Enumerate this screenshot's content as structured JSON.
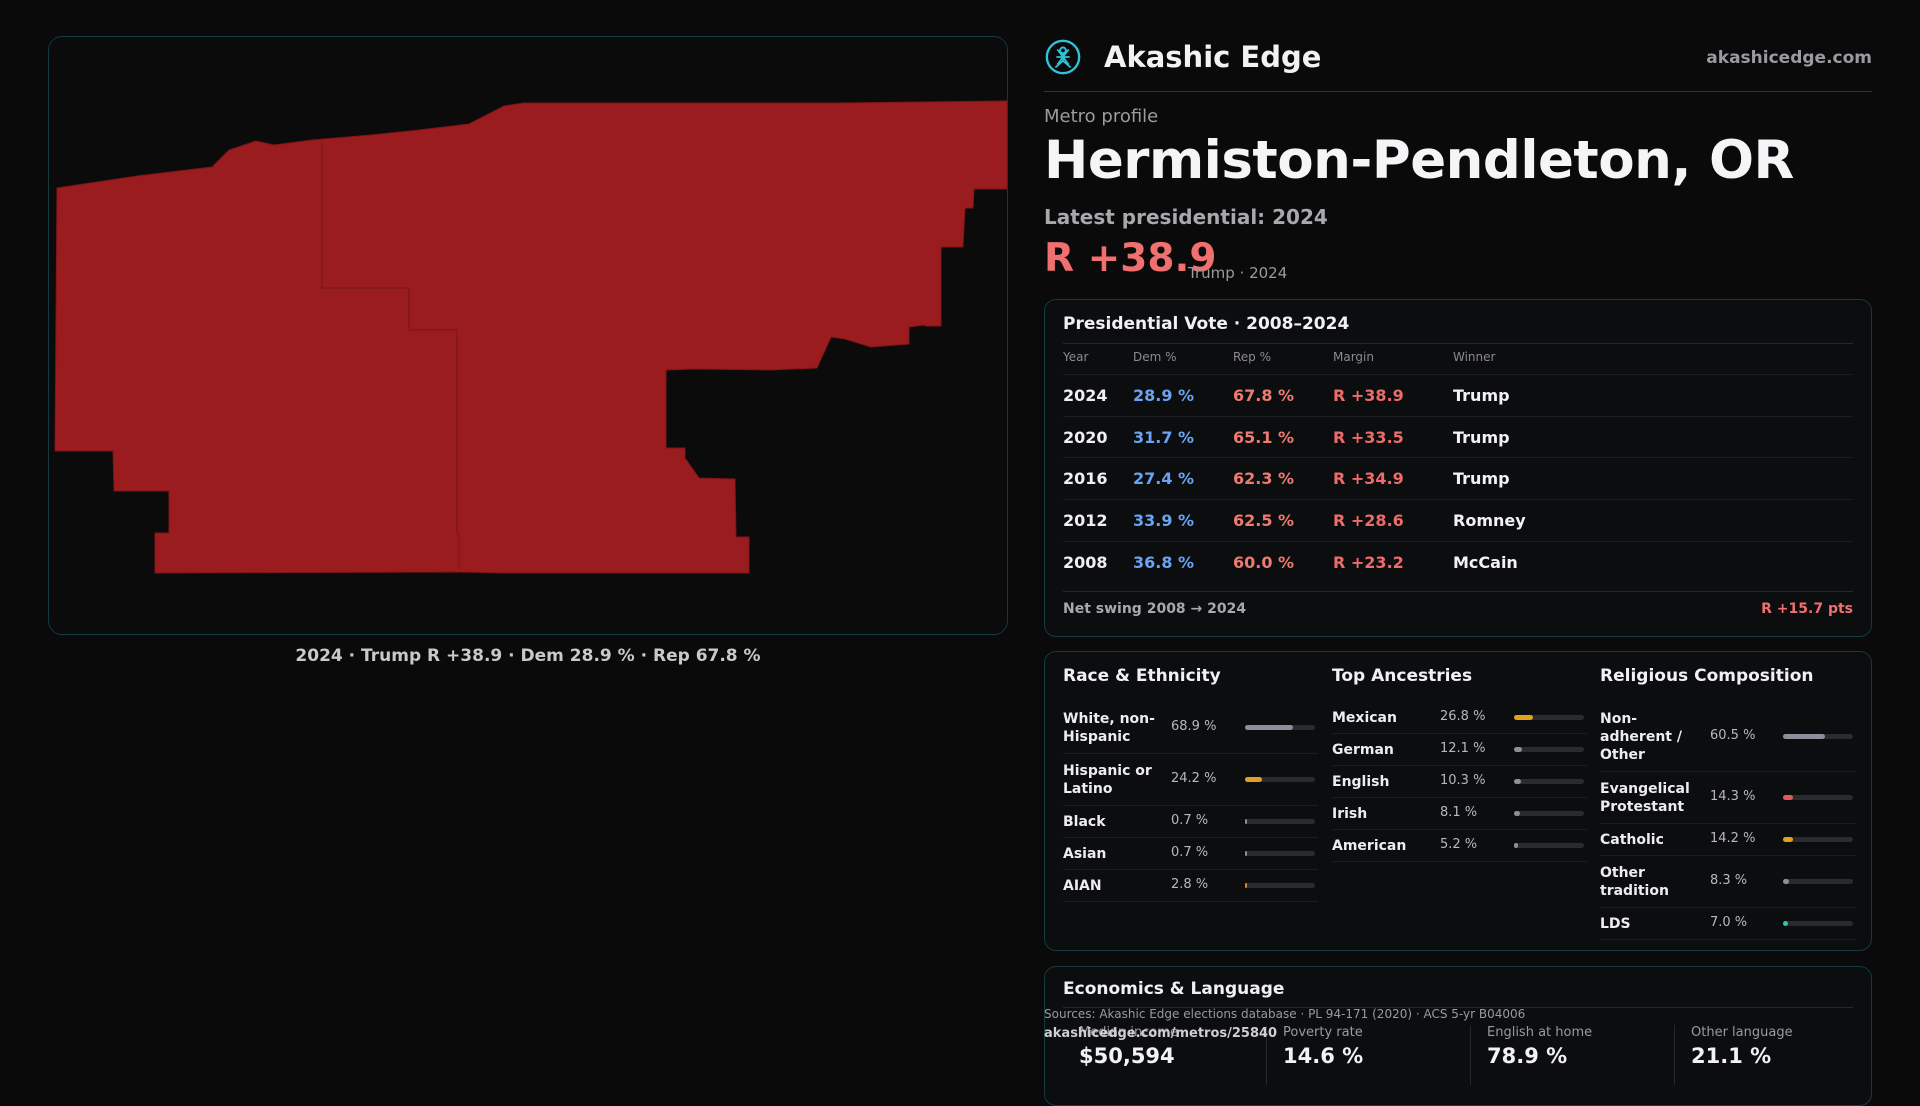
{
  "map": {
    "caption": "2024 · Trump R +38.9 · Dem 28.9 % · Rep 67.8 %",
    "fill_color": "#9b1c1f"
  },
  "brand": {
    "name": "Akashic Edge",
    "url": "akashicedge.com",
    "logo_icon": "akashic-logo-icon"
  },
  "profile": {
    "eyebrow": "Metro profile",
    "title": "Hermiston-Pendleton, OR",
    "latest_label": "Latest presidential: 2024",
    "margin": "R +38.9",
    "margin_note": "Trump · 2024"
  },
  "vote": {
    "title": "Presidential Vote · 2008–2024",
    "headers": {
      "year": "Year",
      "dem": "Dem %",
      "rep": "Rep %",
      "margin": "Margin",
      "winner": "Winner"
    },
    "rows": [
      {
        "year": "2024",
        "dem": "28.9 %",
        "rep": "67.8 %",
        "margin": "R +38.9",
        "winner": "Trump"
      },
      {
        "year": "2020",
        "dem": "31.7 %",
        "rep": "65.1 %",
        "margin": "R +33.5",
        "winner": "Trump"
      },
      {
        "year": "2016",
        "dem": "27.4 %",
        "rep": "62.3 %",
        "margin": "R +34.9",
        "winner": "Trump"
      },
      {
        "year": "2012",
        "dem": "33.9 %",
        "rep": "62.5 %",
        "margin": "R +28.6",
        "winner": "Romney"
      },
      {
        "year": "2008",
        "dem": "36.8 %",
        "rep": "60.0 %",
        "margin": "R +23.2",
        "winner": "McCain"
      }
    ],
    "swing_label": "Net swing 2008 → 2024",
    "swing_value": "R +15.7 pts"
  },
  "demographics": {
    "race": {
      "title": "Race & Ethnicity",
      "items": [
        {
          "label": "White, non-Hispanic",
          "value": "68.9 %",
          "share": 0.689,
          "color": "#8a8f99"
        },
        {
          "label": "Hispanic or Latino",
          "value": "24.2 %",
          "share": 0.242,
          "color": "#e0a020"
        },
        {
          "label": "Black",
          "value": "0.7 %",
          "share": 0.007,
          "color": "#8a8f99"
        },
        {
          "label": "Asian",
          "value": "0.7 %",
          "share": 0.007,
          "color": "#8a8f99"
        },
        {
          "label": "AIAN",
          "value": "2.8 %",
          "share": 0.028,
          "color": "#e0802a"
        }
      ]
    },
    "ancestry": {
      "title": "Top Ancestries",
      "items": [
        {
          "label": "Mexican",
          "value": "26.8 %",
          "share": 0.268,
          "color": "#e0a020"
        },
        {
          "label": "German",
          "value": "12.1 %",
          "share": 0.121,
          "color": "#8a8f99"
        },
        {
          "label": "English",
          "value": "10.3 %",
          "share": 0.103,
          "color": "#8a8f99"
        },
        {
          "label": "Irish",
          "value": "8.1 %",
          "share": 0.081,
          "color": "#8a8f99"
        },
        {
          "label": "American",
          "value": "5.2 %",
          "share": 0.052,
          "color": "#8a8f99"
        }
      ]
    },
    "religion": {
      "title": "Religious Composition",
      "items": [
        {
          "label": "Non-adherent / Other",
          "value": "60.5 %",
          "share": 0.605,
          "color": "#8a8f99"
        },
        {
          "label": "Evangelical Protestant",
          "value": "14.3 %",
          "share": 0.143,
          "color": "#e05a5a"
        },
        {
          "label": "Catholic",
          "value": "14.2 %",
          "share": 0.142,
          "color": "#e0a020"
        },
        {
          "label": "Other tradition",
          "value": "8.3 %",
          "share": 0.083,
          "color": "#8a8f99"
        },
        {
          "label": "LDS",
          "value": "7.0 %",
          "share": 0.07,
          "color": "#2ec4b6"
        }
      ]
    }
  },
  "economics": {
    "title": "Economics & Language",
    "cells": [
      {
        "label": "Median income",
        "value": "$50,594"
      },
      {
        "label": "Poverty rate",
        "value": "14.6 %"
      },
      {
        "label": "English at home",
        "value": "78.9 %"
      },
      {
        "label": "Other language",
        "value": "21.1 %"
      }
    ]
  },
  "footer": {
    "sources": "Sources: Akashic Edge elections database · PL 94-171 (2020) · ACS 5-yr B04006",
    "url": "akashicedge.com/metros/25840"
  }
}
